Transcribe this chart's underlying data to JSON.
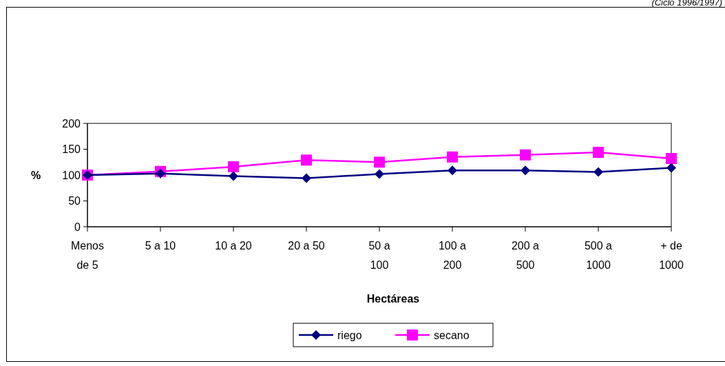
{
  "chart_data": {
    "type": "line",
    "xlabel": "Hectáreas",
    "ylabel": "%",
    "annotations": [
      "(Ciclo 1996/1997)"
    ],
    "categories": [
      "Menos de 5",
      "5 a 10",
      "10 a 20",
      "20 a 50",
      "50 a 100",
      "100 a 200",
      "200 a 500",
      "500 a 1000",
      "+ de 1000"
    ],
    "series": [
      {
        "name": "riego",
        "color": "#000080",
        "marker": "diamond",
        "values": [
          100,
          103,
          98,
          94,
          102,
          109,
          109,
          106,
          114
        ]
      },
      {
        "name": "secano",
        "color": "#ff00ff",
        "marker": "square",
        "values": [
          100,
          107,
          116,
          129,
          125,
          135,
          139,
          144,
          132
        ]
      }
    ],
    "ylim": [
      0,
      200
    ],
    "yticks": [
      0,
      50,
      100,
      150,
      200
    ],
    "legend": "bottom",
    "grid": false,
    "line_style": "solid"
  }
}
